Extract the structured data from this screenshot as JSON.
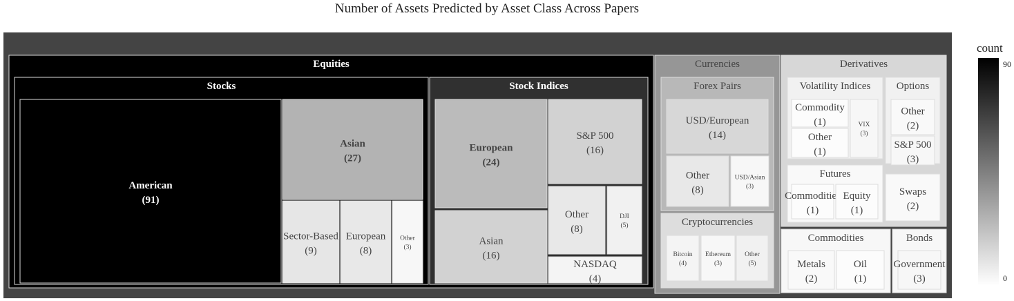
{
  "chart_data": {
    "type": "treemap",
    "title": "Number of Assets Predicted by Asset Class Across Papers",
    "colorbar": {
      "title": "count",
      "min": 0,
      "max": 90,
      "ticks": [
        90,
        0
      ],
      "colors": [
        "#000000",
        "#ffffff"
      ]
    },
    "tree": [
      {
        "name": "Equities",
        "children": [
          {
            "name": "Stocks",
            "children": [
              {
                "name": "American",
                "value": 91
              },
              {
                "name": "Asian",
                "value": 27
              },
              {
                "name": "Sector-Based",
                "value": 9
              },
              {
                "name": "European",
                "value": 8
              },
              {
                "name": "Other",
                "value": 3
              }
            ]
          },
          {
            "name": "Stock Indices",
            "children": [
              {
                "name": "European",
                "value": 24
              },
              {
                "name": "Asian",
                "value": 16
              },
              {
                "name": "S&P 500",
                "value": 16
              },
              {
                "name": "Other",
                "value": 8
              },
              {
                "name": "DJI",
                "value": 5
              },
              {
                "name": "NASDAQ",
                "value": 4
              }
            ]
          }
        ]
      },
      {
        "name": "Currencies",
        "children": [
          {
            "name": "Forex Pairs",
            "children": [
              {
                "name": "USD/European",
                "value": 14
              },
              {
                "name": "Other",
                "value": 8
              },
              {
                "name": "USD/Asian",
                "value": 3
              }
            ]
          },
          {
            "name": "Cryptocurrencies",
            "children": [
              {
                "name": "Bitcoin",
                "value": 4
              },
              {
                "name": "Ethereum",
                "value": 3
              },
              {
                "name": "Other",
                "value": 5
              }
            ]
          }
        ]
      },
      {
        "name": "Derivatives",
        "children": [
          {
            "name": "Volatility Indices",
            "children": [
              {
                "name": "Commodity",
                "value": 1
              },
              {
                "name": "Other",
                "value": 1
              },
              {
                "name": "VIX",
                "value": 3
              }
            ]
          },
          {
            "name": "Options",
            "children": [
              {
                "name": "Other",
                "value": 2
              },
              {
                "name": "S&P 500",
                "value": 3
              }
            ]
          },
          {
            "name": "Futures",
            "children": [
              {
                "name": "Commodities",
                "value": 1
              },
              {
                "name": "Equity",
                "value": 1
              }
            ]
          },
          {
            "name": "Swaps",
            "value": 2
          }
        ]
      },
      {
        "name": "Commodities",
        "children": [
          {
            "name": "Metals",
            "value": 2
          },
          {
            "name": "Oil",
            "value": 1
          }
        ]
      },
      {
        "name": "Bonds",
        "children": [
          {
            "name": "Government",
            "value": 3
          }
        ]
      }
    ]
  }
}
